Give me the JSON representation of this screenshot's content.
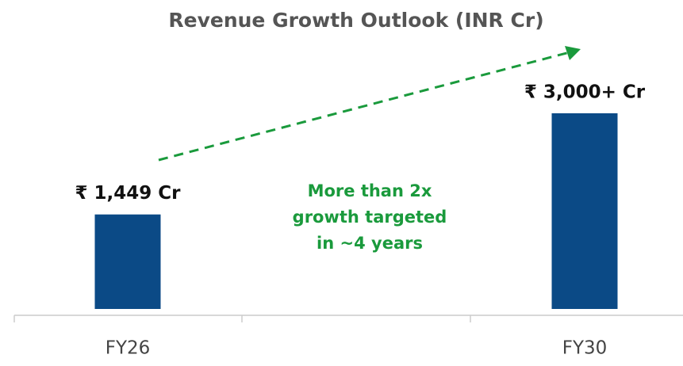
{
  "chart_data": {
    "type": "bar",
    "title": "Revenue Growth Outlook (INR Cr)",
    "categories": [
      "FY26",
      "FY30"
    ],
    "values": [
      1449,
      3000
    ],
    "value_labels": [
      "₹ 1,449 Cr",
      "₹ 3,000+ Cr"
    ],
    "color": "#0b4a86",
    "annotation": [
      "More than 2x",
      "growth targeted",
      "in ~4 years"
    ]
  }
}
